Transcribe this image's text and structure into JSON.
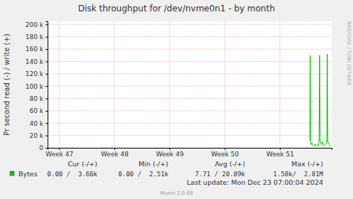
{
  "chart_data": {
    "type": "line",
    "title": "Disk throughput for /dev/nvme0n1 - by month",
    "y_label": "Pr second read (-) / write (+)",
    "x": [
      51.54,
      51.55,
      51.56,
      51.57,
      51.58,
      51.6,
      51.62,
      51.64,
      51.66,
      51.68,
      51.7,
      51.71,
      51.72,
      51.73,
      51.75,
      51.77,
      51.79,
      51.81,
      51.83,
      51.85,
      51.86,
      51.87,
      51.89,
      51.91,
      51.93
    ],
    "series": [
      {
        "name": "Bytes",
        "color": "#00cc00",
        "values": [
          12000,
          150000,
          10000,
          5000,
          8000,
          4000,
          3000,
          6000,
          3000,
          4000,
          3000,
          10000,
          150000,
          12000,
          5000,
          10000,
          4000,
          3000,
          5000,
          8000,
          152000,
          10000,
          6000,
          4000,
          3660
        ]
      }
    ],
    "xlim": [
      46.79,
      51.94
    ],
    "xticks": [
      {
        "value": 47,
        "label": "Week 47"
      },
      {
        "value": 48,
        "label": "Week 48"
      },
      {
        "value": 49,
        "label": "Week 49"
      },
      {
        "value": 50,
        "label": "Week 50"
      },
      {
        "value": 51,
        "label": "Week 51"
      }
    ],
    "ylim": [
      0,
      205000
    ],
    "yticks": [
      0,
      {
        "value": 20000,
        "label": "20 k"
      },
      {
        "value": 40000,
        "label": "40 k"
      },
      {
        "value": 60000,
        "label": "60 k"
      },
      {
        "value": 80000,
        "label": "80 k"
      },
      {
        "value": 100000,
        "label": "100 k"
      },
      {
        "value": 120000,
        "label": "120 k"
      },
      {
        "value": 140000,
        "label": "140 k"
      },
      {
        "value": 160000,
        "label": "160 k"
      },
      {
        "value": 180000,
        "label": "180 k"
      },
      {
        "value": 200000,
        "label": "200 k"
      }
    ],
    "grid": true,
    "legend": "bottom",
    "legend_stats": {
      "headers": [
        "Cur (-/+)",
        "Min (-/+)",
        "Avg (-/+)",
        "Max (-/+)"
      ],
      "values": [
        "0.00 /  3.66k",
        "0.00 /  2.51k",
        "7.71 / 20.89k",
        "1.58k/  2.81M"
      ]
    },
    "footer": "Last update: Mon Dec 23 07:00:04 2024",
    "credit": "Munin 2.0.69",
    "watermark": "RRDTOOL / TOBI OETIKER"
  }
}
